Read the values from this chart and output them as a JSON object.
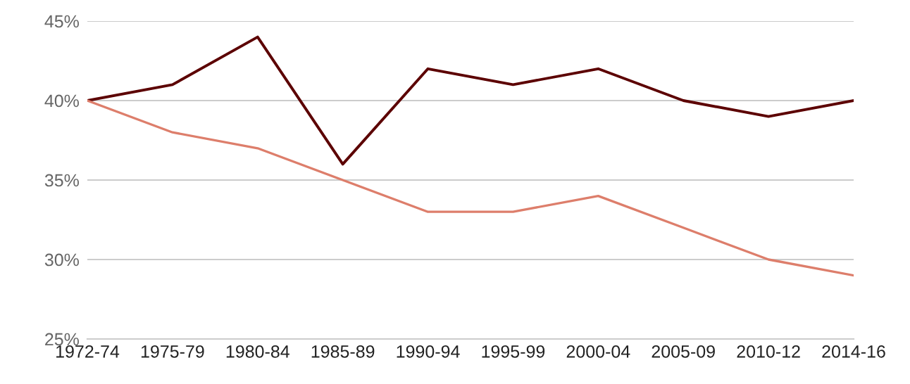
{
  "chart_data": {
    "type": "line",
    "categories": [
      "1972-74",
      "1975-79",
      "1980-84",
      "1985-89",
      "1990-94",
      "1995-99",
      "2000-04",
      "2005-09",
      "2010-12",
      "2014-16"
    ],
    "series": [
      {
        "color": "#5c0000",
        "values": [
          40,
          41,
          44,
          36,
          42,
          41,
          42,
          40,
          39,
          40
        ]
      },
      {
        "color": "#dd7e6b",
        "values": [
          40,
          38,
          37,
          35,
          33,
          33,
          34,
          32,
          30,
          29
        ]
      }
    ],
    "ylim": [
      25,
      45
    ],
    "yticks": [
      {
        "value": 25,
        "label": "25%"
      },
      {
        "value": 30,
        "label": "30%"
      },
      {
        "value": 35,
        "label": "35%"
      },
      {
        "value": 40,
        "label": "40%"
      },
      {
        "value": 45,
        "label": "45%"
      }
    ],
    "grid": "y",
    "marker": "none",
    "line_style": "solid"
  }
}
